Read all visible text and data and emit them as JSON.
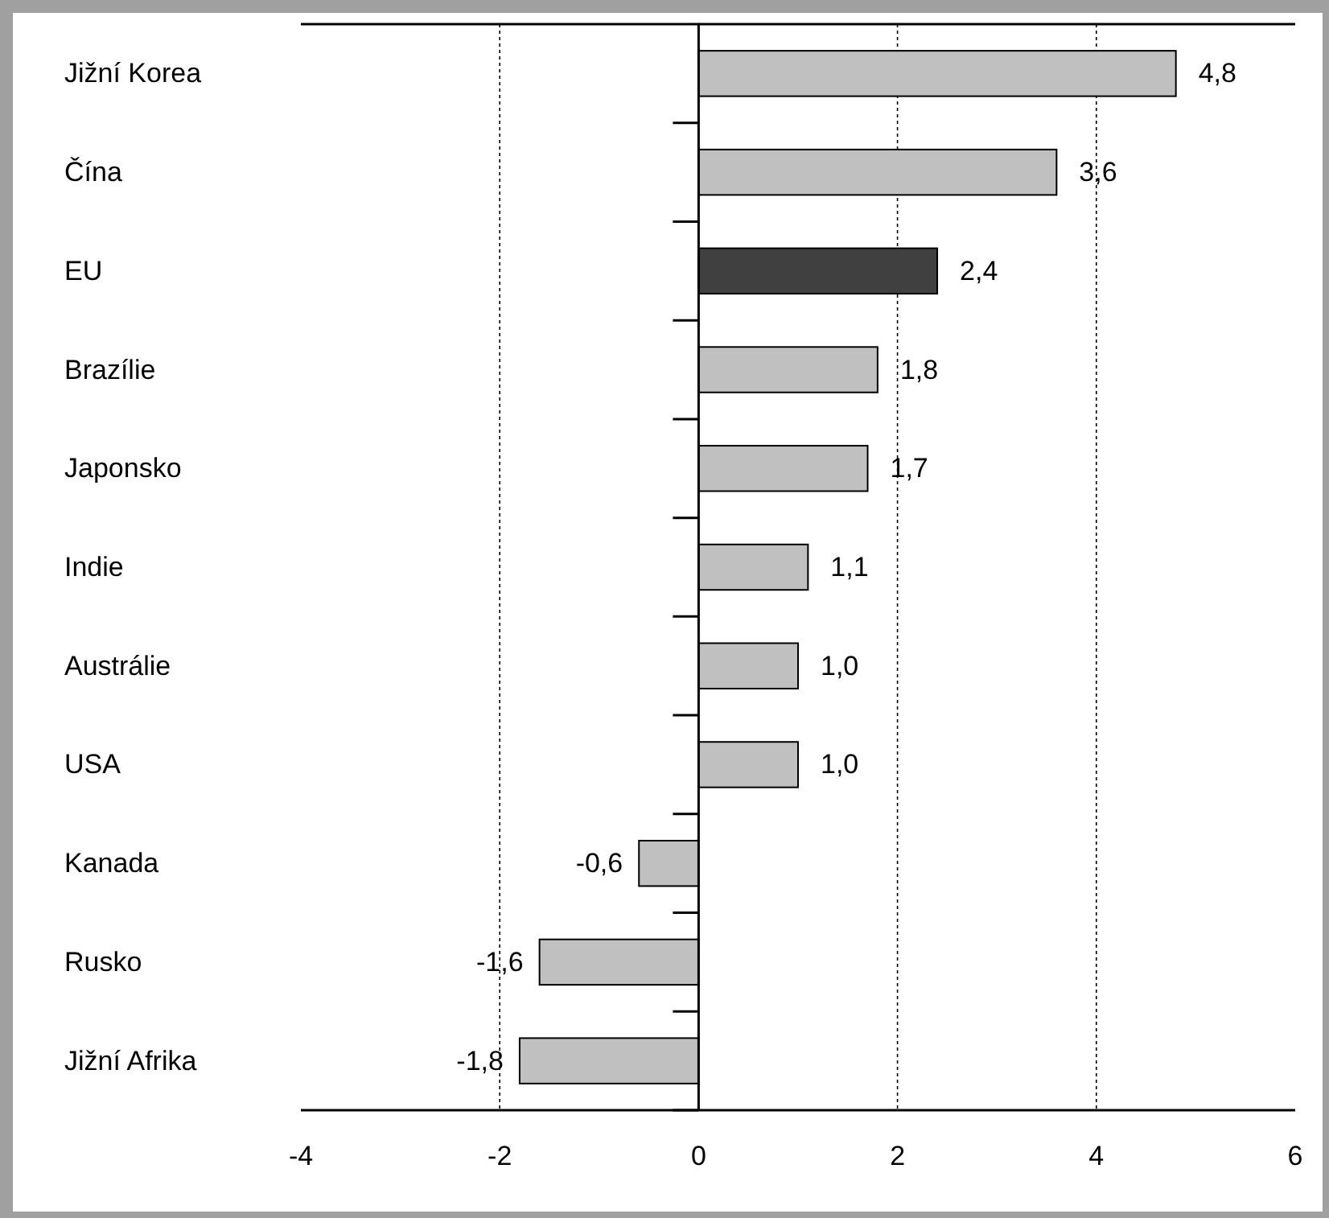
{
  "chart_data": {
    "type": "bar",
    "orientation": "horizontal",
    "categories": [
      "Jižní Korea",
      "Čína",
      "EU",
      "Brazílie",
      "Japonsko",
      "Indie",
      "Austrálie",
      "USA",
      "Kanada",
      "Rusko",
      "Jižní Afrika"
    ],
    "values": [
      4.8,
      3.6,
      2.4,
      1.8,
      1.7,
      1.1,
      1.0,
      1.0,
      -0.6,
      -1.6,
      -1.8
    ],
    "colors": [
      "#c0c0c0",
      "#c0c0c0",
      "#404040",
      "#c0c0c0",
      "#c0c0c0",
      "#c0c0c0",
      "#c0c0c0",
      "#c0c0c0",
      "#c0c0c0",
      "#c0c0c0",
      "#c0c0c0"
    ],
    "value_labels": [
      "4,8",
      "3,6",
      "2,4",
      "1,8",
      "1,7",
      "1,1",
      "1,0",
      "1,0",
      "-0,6",
      "-1,6",
      "-1,8"
    ],
    "xlim": [
      -4,
      6
    ],
    "xticks": [
      -4,
      -2,
      0,
      2,
      4,
      6
    ],
    "grid": "x"
  }
}
